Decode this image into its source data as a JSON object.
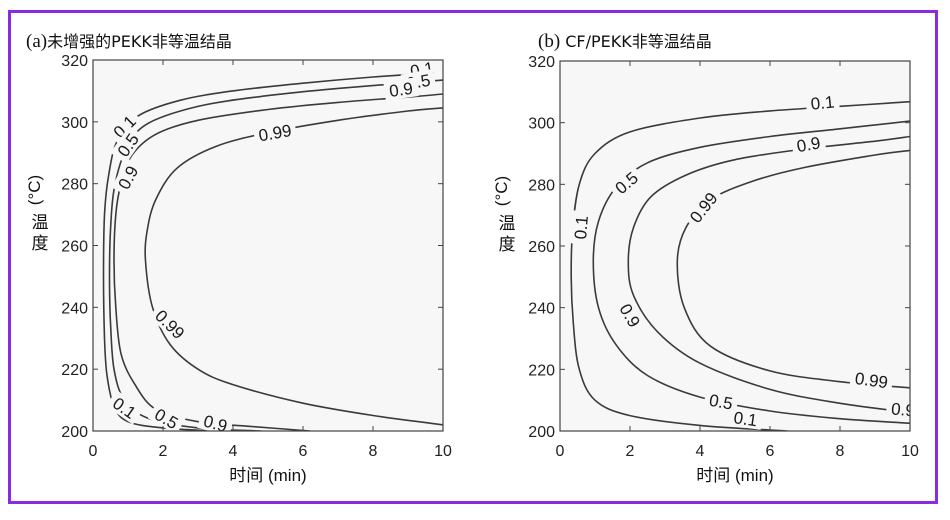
{
  "colors": {
    "frame": "#8a2be2",
    "plot_bg": "#f7f7f7",
    "contour": "#3a3a3a"
  },
  "chart_data": [
    {
      "type": "contour",
      "panel": "a",
      "title_tag": "(a)",
      "title_text": "未增强的PEKK非等温结晶",
      "xlabel_cjk": "时间",
      "xlabel_unit": "(min)",
      "ylabel_cjk": [
        "温",
        "度"
      ],
      "ylabel_unit": "(°C)",
      "xlim": [
        0,
        10
      ],
      "ylim": [
        200,
        320
      ],
      "xticks": [
        0,
        2,
        4,
        6,
        8,
        10
      ],
      "yticks": [
        200,
        220,
        240,
        260,
        280,
        300,
        320
      ],
      "grid": false,
      "levels": [
        {
          "level": "0.1",
          "points": [
            [
              3.5,
              200
            ],
            [
              2.0,
              201
            ],
            [
              1.0,
              203
            ],
            [
              0.6,
              208
            ],
            [
              0.4,
              218
            ],
            [
              0.33,
              230
            ],
            [
              0.3,
              250
            ],
            [
              0.33,
              270
            ],
            [
              0.45,
              283
            ],
            [
              0.7,
              294
            ],
            [
              1.3,
              302
            ],
            [
              2.5,
              307
            ],
            [
              4,
              310
            ],
            [
              6,
              312.5
            ],
            [
              8,
              314.5
            ],
            [
              9.3,
              315.5
            ]
          ],
          "labels": [
            {
              "at": [
                0.9,
                207.5
              ],
              "angle": 35
            },
            {
              "at": [
                0.9,
                298.5
              ],
              "angle": -45
            },
            {
              "at": [
                9.4,
                317
              ],
              "angle": -10
            }
          ]
        },
        {
          "level": "0.5",
          "points": [
            [
              4.8,
              200
            ],
            [
              3.0,
              201
            ],
            [
              1.6,
              204
            ],
            [
              0.9,
              210
            ],
            [
              0.6,
              220
            ],
            [
              0.5,
              235
            ],
            [
              0.47,
              250
            ],
            [
              0.5,
              265
            ],
            [
              0.6,
              278
            ],
            [
              0.9,
              290
            ],
            [
              1.5,
              299
            ],
            [
              3,
              305
            ],
            [
              5,
              308.5
            ],
            [
              7,
              310.8
            ],
            [
              10,
              313.5
            ]
          ],
          "labels": [
            {
              "at": [
                2.1,
                204
              ],
              "angle": 30
            },
            {
              "at": [
                1.0,
                292.5
              ],
              "angle": -55
            },
            {
              "at": [
                9.3,
                313
              ],
              "angle": -10
            }
          ]
        },
        {
          "level": "0.9",
          "points": [
            [
              6.2,
              200
            ],
            [
              4.5,
              201.5
            ],
            [
              3,
              203
            ],
            [
              1.8,
              207
            ],
            [
              1.2,
              215
            ],
            [
              0.8,
              225
            ],
            [
              0.65,
              240
            ],
            [
              0.6,
              255
            ],
            [
              0.65,
              270
            ],
            [
              0.8,
              280
            ],
            [
              1.1,
              289
            ],
            [
              1.8,
              296
            ],
            [
              3,
              300.5
            ],
            [
              5,
              304
            ],
            [
              7,
              306.3
            ],
            [
              9,
              308
            ],
            [
              10,
              309
            ]
          ],
          "labels": [
            {
              "at": [
                3.5,
                202.5
              ],
              "angle": 15
            },
            {
              "at": [
                1.0,
                282
              ],
              "angle": -62
            },
            {
              "at": [
                8.8,
                310.5
              ],
              "angle": -8
            }
          ]
        },
        {
          "level": "0.99",
          "points": [
            [
              10,
              202
            ],
            [
              8,
              205
            ],
            [
              6,
              209
            ],
            [
              4,
              215
            ],
            [
              3,
              220
            ],
            [
              2.2,
              228
            ],
            [
              1.7,
              240
            ],
            [
              1.5,
              255
            ],
            [
              1.55,
              265
            ],
            [
              1.8,
              275
            ],
            [
              2.4,
              285
            ],
            [
              3.5,
              292
            ],
            [
              5,
              296.5
            ],
            [
              7,
              300.5
            ],
            [
              9,
              303.5
            ],
            [
              10,
              304.5
            ]
          ],
          "labels": [
            {
              "at": [
                2.2,
                234.5
              ],
              "angle": 45
            },
            {
              "at": [
                5.2,
                296.5
              ],
              "angle": -10
            }
          ]
        }
      ]
    },
    {
      "type": "contour",
      "panel": "b",
      "title_tag": "(b)",
      "title_text": "CF/PEKK非等温结晶",
      "xlabel_cjk": "时间",
      "xlabel_unit": "(min)",
      "ylabel_cjk": [
        "温",
        "度"
      ],
      "ylabel_unit": "(°C)",
      "xlim": [
        0,
        10
      ],
      "ylim": [
        200,
        320
      ],
      "xticks": [
        0,
        2,
        4,
        6,
        8,
        10
      ],
      "yticks": [
        200,
        220,
        240,
        260,
        280,
        300,
        320
      ],
      "grid": false,
      "levels": [
        {
          "level": "0.1",
          "points": [
            [
              6.5,
              200
            ],
            [
              4,
              201.8
            ],
            [
              2,
              205
            ],
            [
              1,
              210
            ],
            [
              0.55,
              220
            ],
            [
              0.38,
              235
            ],
            [
              0.32,
              250
            ],
            [
              0.36,
              265
            ],
            [
              0.55,
              280
            ],
            [
              1,
              290
            ],
            [
              2,
              297
            ],
            [
              4,
              301.5
            ],
            [
              6,
              303.8
            ],
            [
              8,
              305.3
            ],
            [
              10,
              306.8
            ]
          ],
          "labels": [
            {
              "at": [
                0.6,
                266
              ],
              "angle": -85
            },
            {
              "at": [
                5.3,
                204
              ],
              "angle": 8
            },
            {
              "at": [
                7.5,
                306.5
              ],
              "angle": -6
            }
          ]
        },
        {
          "level": "0.5",
          "points": [
            [
              10,
              202.5
            ],
            [
              8,
              204
            ],
            [
              6,
              206.5
            ],
            [
              4,
              211
            ],
            [
              2.5,
              218
            ],
            [
              1.6,
              228
            ],
            [
              1.1,
              240
            ],
            [
              0.95,
              255
            ],
            [
              1.1,
              268
            ],
            [
              1.6,
              279
            ],
            [
              2.5,
              287
            ],
            [
              4,
              292
            ],
            [
              6,
              295.5
            ],
            [
              8,
              298
            ],
            [
              10,
              300.5
            ]
          ],
          "labels": [
            {
              "at": [
                4.6,
                209.5
              ],
              "angle": 10
            },
            {
              "at": [
                1.9,
                280.5
              ],
              "angle": -40
            }
          ]
        },
        {
          "level": "0.9",
          "points": [
            [
              10,
              206
            ],
            [
              8,
              209
            ],
            [
              6,
              213.5
            ],
            [
              4,
              222
            ],
            [
              2.8,
              232
            ],
            [
              2.1,
              244
            ],
            [
              1.95,
              255
            ],
            [
              2.1,
              266
            ],
            [
              2.6,
              276
            ],
            [
              3.6,
              283
            ],
            [
              5,
              288
            ],
            [
              7,
              291.5
            ],
            [
              9,
              294
            ],
            [
              10,
              295.5
            ]
          ],
          "labels": [
            {
              "at": [
                2.0,
                237.5
              ],
              "angle": 60
            },
            {
              "at": [
                7.1,
                293
              ],
              "angle": -10
            },
            {
              "at": [
                9.8,
                207
              ],
              "angle": 5
            }
          ]
        },
        {
          "level": "0.99",
          "points": [
            [
              10,
              214
            ],
            [
              8,
              216
            ],
            [
              6,
              219.5
            ],
            [
              4.3,
              227.5
            ],
            [
              3.55,
              240
            ],
            [
              3.35,
              255
            ],
            [
              3.6,
              266
            ],
            [
              4.3,
              275
            ],
            [
              5.5,
              281
            ],
            [
              7,
              285.5
            ],
            [
              9,
              289.5
            ],
            [
              10,
              291
            ]
          ],
          "labels": [
            {
              "at": [
                4.1,
                272.5
              ],
              "angle": -52
            },
            {
              "at": [
                8.9,
                216.5
              ],
              "angle": 8
            }
          ]
        }
      ]
    }
  ]
}
